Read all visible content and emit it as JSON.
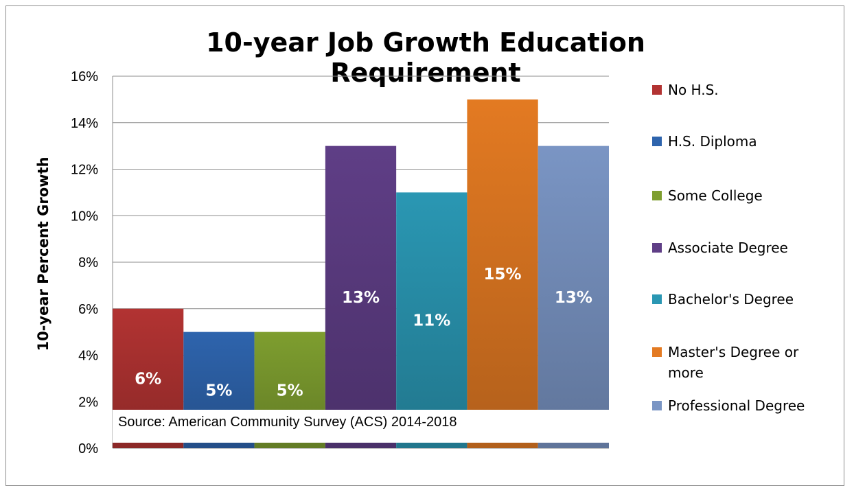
{
  "chart_data": {
    "type": "bar",
    "title": "10-year Job Growth Education Requirement",
    "ylabel": "10-year Percent Growth",
    "xlabel": "",
    "ylim": [
      0,
      16
    ],
    "yticks": [
      "0%",
      "2%",
      "4%",
      "6%",
      "8%",
      "10%",
      "12%",
      "14%",
      "16%"
    ],
    "grid": true,
    "legend_position": "right",
    "annotation": "Source: American Community Survey (ACS) 2014-2018",
    "series": [
      {
        "name": "No H.S.",
        "value": 6,
        "label": "6%",
        "color": "#b23332"
      },
      {
        "name": "H.S. Diploma",
        "value": 5,
        "label": "5%",
        "color": "#2e64ad"
      },
      {
        "name": "Some College",
        "value": 5,
        "label": "5%",
        "color": "#7e9e2f"
      },
      {
        "name": "Associate Degree",
        "value": 13,
        "label": "13%",
        "color": "#5f3e86"
      },
      {
        "name": "Bachelor's Degree",
        "value": 11,
        "label": "11%",
        "color": "#2a97b3"
      },
      {
        "name": "Master's Degree or more",
        "value": 15,
        "label": "15%",
        "color": "#e37a22"
      },
      {
        "name": "Professional Degree",
        "value": 13,
        "label": "13%",
        "color": "#7a95c4"
      }
    ]
  }
}
